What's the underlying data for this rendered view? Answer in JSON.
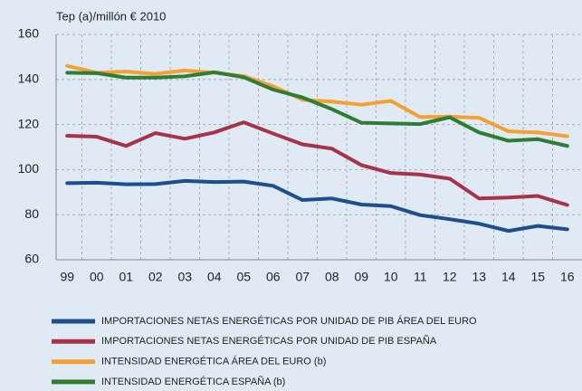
{
  "chart_data": {
    "type": "line",
    "y_axis_label": "Tep (a)/millón € 2010",
    "categories": [
      "99",
      "00",
      "01",
      "02",
      "03",
      "04",
      "05",
      "06",
      "07",
      "08",
      "09",
      "10",
      "11",
      "12",
      "13",
      "14",
      "15",
      "16"
    ],
    "series": [
      {
        "name": "IMPORTACIONES NETAS ENERGÉTICAS POR UNIDAD DE PIB ÁREA DEL EURO",
        "color": "#1f4e8c",
        "values": [
          94,
          94.2,
          93.5,
          93.6,
          95,
          94.5,
          94.7,
          92.8,
          86.5,
          87.2,
          84.5,
          83.8,
          79.8,
          78,
          76,
          72.8,
          75,
          73.5
        ]
      },
      {
        "name": "IMPORTACIONES NETAS ENERGÉTICAS POR UNIDAD DE PIB ESPAÑA",
        "color": "#a8324a",
        "values": [
          115,
          114.6,
          110.5,
          116.2,
          113.7,
          116.5,
          121,
          116,
          111.2,
          109.3,
          102,
          98.5,
          97.8,
          96,
          87.2,
          87.6,
          88.3,
          84.3
        ]
      },
      {
        "name": "INTENSIDAD ENERGÉTICA ÁREA DEL EURO (b)",
        "color": "#f5a033",
        "values": [
          146,
          143,
          143.5,
          142.5,
          144,
          143,
          141.5,
          137,
          131,
          130.2,
          128.8,
          130.5,
          123.3,
          123.5,
          123,
          117,
          116.5,
          114.8
        ]
      },
      {
        "name": "INTENSIDAD ENERGÉTICA ESPAÑA (b)",
        "color": "#2e7d32",
        "values": [
          143,
          142.8,
          140.8,
          140.8,
          141.4,
          143.2,
          141,
          135.5,
          132,
          126.8,
          120.8,
          120.5,
          120.2,
          123.2,
          116.5,
          112.8,
          113.5,
          110.5
        ]
      }
    ],
    "ylim": [
      60,
      160
    ],
    "yticks": [
      60,
      80,
      100,
      120,
      140,
      160
    ],
    "grid": true
  }
}
